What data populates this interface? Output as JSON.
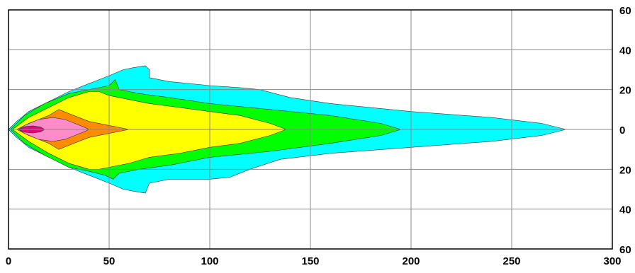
{
  "chart_data": {
    "type": "area",
    "title": "",
    "xlabel": "",
    "ylabel": "",
    "xlim": [
      0,
      300
    ],
    "ylim": [
      -60,
      60
    ],
    "grid": true,
    "x_ticks": [
      {
        "value": 0,
        "label": "0"
      },
      {
        "value": 50,
        "label": "50"
      },
      {
        "value": 100,
        "label": "100"
      },
      {
        "value": 150,
        "label": "150"
      },
      {
        "value": 200,
        "label": "200"
      },
      {
        "value": 250,
        "label": "250"
      },
      {
        "value": 300,
        "label": "300"
      }
    ],
    "y_ticks": [
      {
        "value": 60,
        "label": "60"
      },
      {
        "value": 40,
        "label": "40"
      },
      {
        "value": 20,
        "label": "20"
      },
      {
        "value": 0,
        "label": "0"
      },
      {
        "value": -20,
        "label": "20"
      },
      {
        "value": -40,
        "label": "40"
      },
      {
        "value": -60,
        "label": "60"
      }
    ],
    "series": [
      {
        "color": "#00ffff",
        "points": [
          [
            0,
            0
          ],
          [
            4,
            4
          ],
          [
            10,
            9
          ],
          [
            20,
            14
          ],
          [
            30,
            19
          ],
          [
            40,
            23
          ],
          [
            50,
            27
          ],
          [
            57,
            30
          ],
          [
            62,
            31
          ],
          [
            68,
            32
          ],
          [
            70,
            30
          ],
          [
            70,
            26
          ],
          [
            80,
            24
          ],
          [
            100,
            22
          ],
          [
            115,
            21
          ],
          [
            125,
            20
          ],
          [
            140,
            16
          ],
          [
            160,
            13
          ],
          [
            200,
            9
          ],
          [
            240,
            6
          ],
          [
            265,
            3
          ],
          [
            277,
            0
          ],
          [
            265,
            -3
          ],
          [
            240,
            -6
          ],
          [
            200,
            -9
          ],
          [
            160,
            -12
          ],
          [
            135,
            -15
          ],
          [
            120,
            -20
          ],
          [
            110,
            -24
          ],
          [
            100,
            -25
          ],
          [
            80,
            -25
          ],
          [
            70,
            -27
          ],
          [
            68,
            -32
          ],
          [
            62,
            -31
          ],
          [
            57,
            -30
          ],
          [
            50,
            -27
          ],
          [
            40,
            -23
          ],
          [
            30,
            -19
          ],
          [
            20,
            -14
          ],
          [
            10,
            -9
          ],
          [
            4,
            -4
          ]
        ]
      },
      {
        "color": "#00ff00",
        "points": [
          [
            1,
            0
          ],
          [
            8,
            7
          ],
          [
            18,
            13
          ],
          [
            30,
            18
          ],
          [
            40,
            20
          ],
          [
            45,
            21
          ],
          [
            50,
            22
          ],
          [
            53,
            25
          ],
          [
            55,
            20
          ],
          [
            65,
            18
          ],
          [
            80,
            16
          ],
          [
            100,
            13
          ],
          [
            130,
            10
          ],
          [
            160,
            7
          ],
          [
            185,
            3
          ],
          [
            195,
            0
          ],
          [
            185,
            -3
          ],
          [
            160,
            -7
          ],
          [
            130,
            -11
          ],
          [
            100,
            -14
          ],
          [
            80,
            -18
          ],
          [
            65,
            -20
          ],
          [
            55,
            -22
          ],
          [
            52,
            -25
          ],
          [
            48,
            -23
          ],
          [
            40,
            -21
          ],
          [
            30,
            -19
          ],
          [
            18,
            -13
          ],
          [
            8,
            -7
          ]
        ]
      },
      {
        "color": "#ffff00",
        "points": [
          [
            2,
            0
          ],
          [
            10,
            6
          ],
          [
            20,
            11
          ],
          [
            30,
            16
          ],
          [
            40,
            19
          ],
          [
            45,
            19
          ],
          [
            50,
            17
          ],
          [
            60,
            15
          ],
          [
            70,
            13
          ],
          [
            85,
            11
          ],
          [
            100,
            9
          ],
          [
            115,
            7
          ],
          [
            130,
            3
          ],
          [
            138,
            0
          ],
          [
            130,
            -3
          ],
          [
            115,
            -7
          ],
          [
            100,
            -9
          ],
          [
            85,
            -12
          ],
          [
            70,
            -14
          ],
          [
            60,
            -17
          ],
          [
            50,
            -19
          ],
          [
            45,
            -20
          ],
          [
            40,
            -20
          ],
          [
            30,
            -17
          ],
          [
            20,
            -12
          ],
          [
            10,
            -6
          ]
        ]
      },
      {
        "color": "#ff8c00",
        "points": [
          [
            4,
            0
          ],
          [
            10,
            3
          ],
          [
            20,
            7
          ],
          [
            25,
            10
          ],
          [
            30,
            8
          ],
          [
            40,
            4
          ],
          [
            50,
            2
          ],
          [
            60,
            0
          ],
          [
            50,
            -2
          ],
          [
            40,
            -4
          ],
          [
            30,
            -8
          ],
          [
            25,
            -10
          ],
          [
            20,
            -7
          ],
          [
            10,
            -3
          ]
        ]
      },
      {
        "color": "#ff8cc8",
        "points": [
          [
            5,
            0
          ],
          [
            8,
            2
          ],
          [
            15,
            5
          ],
          [
            22,
            6
          ],
          [
            28,
            5
          ],
          [
            33,
            3
          ],
          [
            38,
            1
          ],
          [
            40,
            0
          ],
          [
            38,
            -1
          ],
          [
            33,
            -3
          ],
          [
            28,
            -5
          ],
          [
            22,
            -6
          ],
          [
            15,
            -5
          ],
          [
            8,
            -2
          ]
        ]
      },
      {
        "color": "#e8007a",
        "points": [
          [
            5,
            0
          ],
          [
            8,
            1.4
          ],
          [
            12,
            1.8
          ],
          [
            16,
            1.2
          ],
          [
            18,
            0
          ],
          [
            16,
            -1.2
          ],
          [
            12,
            -1.8
          ],
          [
            8,
            -1.4
          ]
        ]
      }
    ]
  }
}
